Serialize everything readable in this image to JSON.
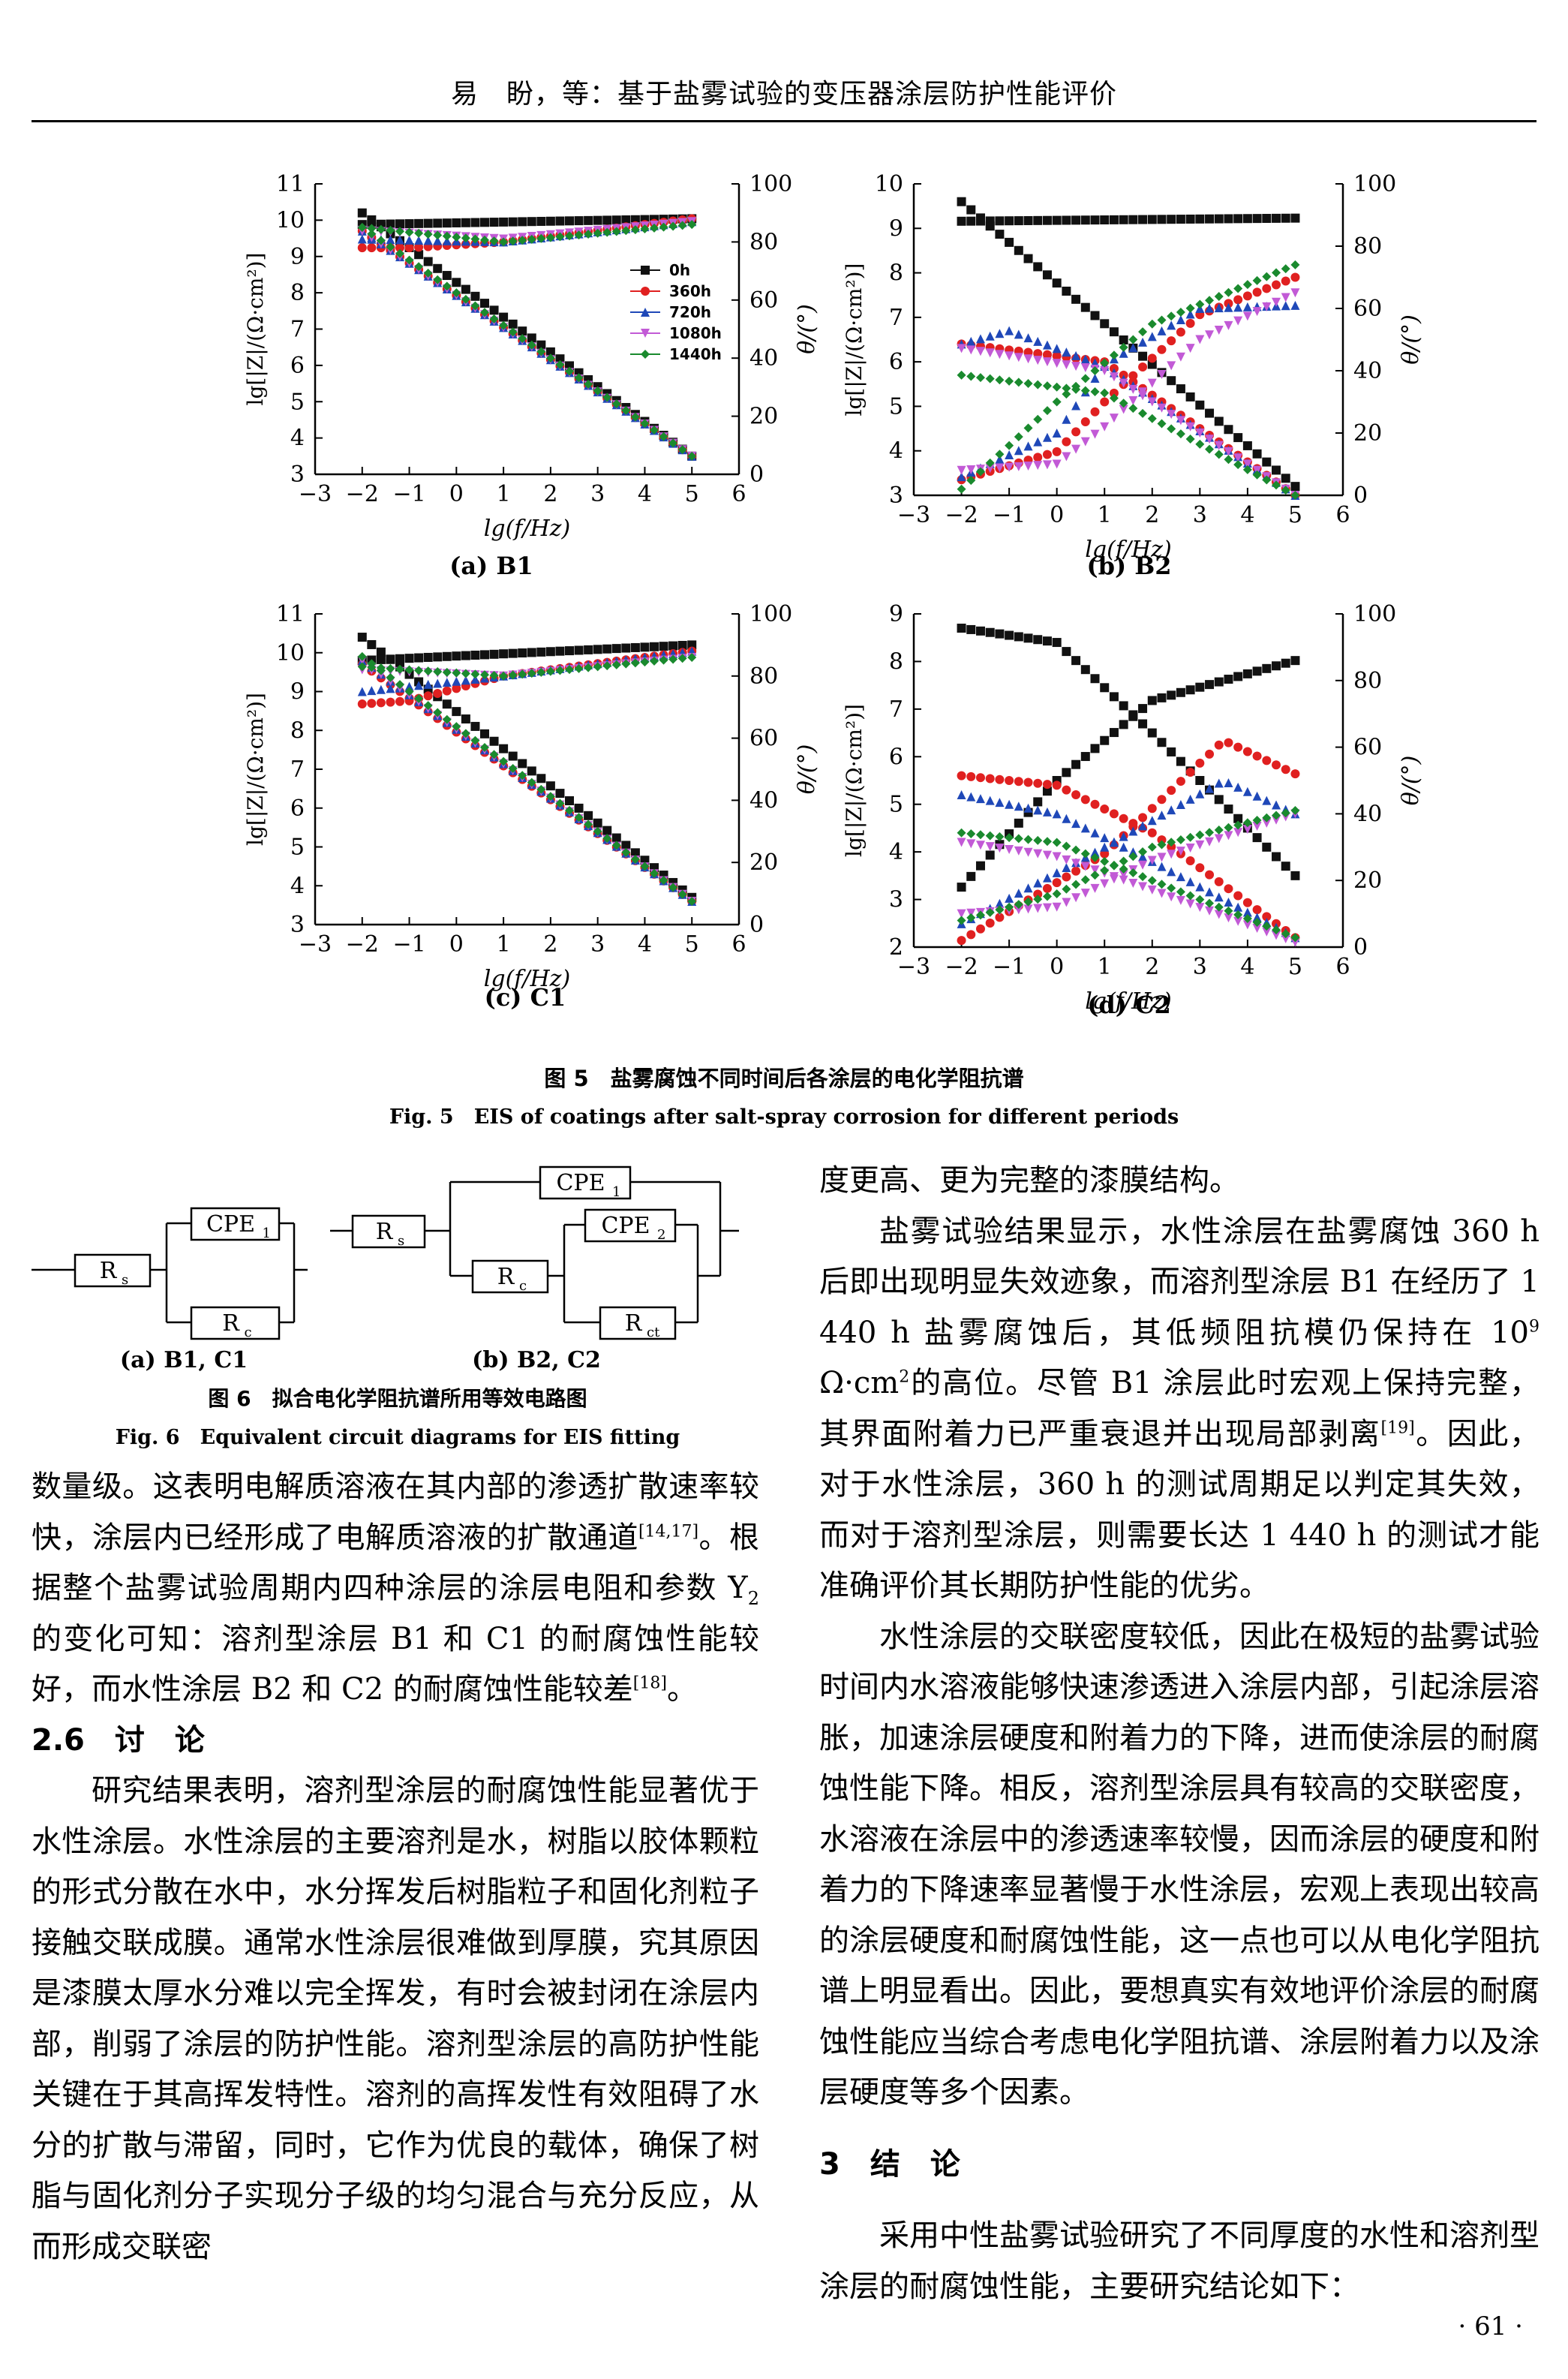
{
  "header": {
    "running_title": "易　盼，等：基于盐雾试验的变压器涂层防护性能评价"
  },
  "figure5": {
    "caption_cn": "图 5　盐雾腐蚀不同时间后各涂层的电化学阻抗谱",
    "caption_en": "Fig. 5　EIS of coatings after salt-spray corrosion for different periods",
    "legend": [
      {
        "label": "0h",
        "color": "#111111",
        "marker": "square"
      },
      {
        "label": "360h",
        "color": "#e02020",
        "marker": "circle"
      },
      {
        "label": "720h",
        "color": "#1f48b8",
        "marker": "triangle-up"
      },
      {
        "label": "1080h",
        "color": "#c25ad6",
        "marker": "triangle-down"
      },
      {
        "label": "1440h",
        "color": "#1a8a2e",
        "marker": "diamond"
      }
    ],
    "x_label": "lg(f/Hz)",
    "y_left_label": "lg[|Z|/(Ω·cm²)]",
    "y_right_label": "θ/(°)",
    "panels": [
      {
        "label": "(a) B1",
        "x_ticks": [
          "−3",
          "−2",
          "−1",
          "0",
          "1",
          "2",
          "3",
          "4",
          "5",
          "6"
        ],
        "y_left_ticks": [
          "3",
          "4",
          "5",
          "6",
          "7",
          "8",
          "9",
          "10",
          "11"
        ],
        "y_right_ticks": [
          "0",
          "20",
          "40",
          "60",
          "80",
          "100"
        ]
      },
      {
        "label": "(b) B2",
        "x_ticks": [
          "−3",
          "−2",
          "−1",
          "0",
          "1",
          "2",
          "3",
          "4",
          "5",
          "6"
        ],
        "y_left_ticks": [
          "3",
          "4",
          "5",
          "6",
          "7",
          "8",
          "9",
          "10"
        ],
        "y_right_ticks": [
          "0",
          "20",
          "40",
          "60",
          "80",
          "100"
        ]
      },
      {
        "label": "(c) C1",
        "x_ticks": [
          "−3",
          "−2",
          "−1",
          "0",
          "1",
          "2",
          "3",
          "4",
          "5",
          "6"
        ],
        "y_left_ticks": [
          "3",
          "4",
          "5",
          "6",
          "7",
          "8",
          "9",
          "10",
          "11"
        ],
        "y_right_ticks": [
          "0",
          "20",
          "40",
          "60",
          "80",
          "100"
        ]
      },
      {
        "label": "(d) C2",
        "x_ticks": [
          "−3",
          "−2",
          "−1",
          "0",
          "1",
          "2",
          "3",
          "4",
          "5",
          "6"
        ],
        "y_left_ticks": [
          "2",
          "3",
          "4",
          "5",
          "6",
          "7",
          "8",
          "9"
        ],
        "y_right_ticks": [
          "0",
          "20",
          "40",
          "60",
          "80",
          "100"
        ]
      }
    ]
  },
  "chart_data": [
    {
      "type": "scatter",
      "title": "(a) B1",
      "xlim": [
        -3,
        6
      ],
      "ylim_left": [
        3,
        11
      ],
      "ylim_right": [
        0,
        100
      ],
      "series": [
        {
          "name": "0h",
          "modulus": [
            [
              -2,
              10.2
            ],
            [
              5,
              3.5
            ]
          ],
          "phase": [
            [
              -2,
              86
            ],
            [
              5,
              88
            ]
          ]
        },
        {
          "name": "360h",
          "modulus": [
            [
              -2,
              9.7
            ],
            [
              5,
              3.5
            ]
          ],
          "phase": [
            [
              -2,
              78
            ],
            [
              -1,
              78
            ],
            [
              1,
              80
            ],
            [
              5,
              88
            ]
          ]
        },
        {
          "name": "720h",
          "modulus": [
            [
              -2,
              9.7
            ],
            [
              5,
              3.5
            ]
          ],
          "phase": [
            [
              -2,
              81
            ],
            [
              1,
              80
            ],
            [
              5,
              87
            ]
          ]
        },
        {
          "name": "1080h",
          "modulus": [
            [
              -2,
              9.7
            ],
            [
              5,
              3.5
            ]
          ],
          "phase": [
            [
              -2,
              84
            ],
            [
              1,
              81
            ],
            [
              5,
              87
            ]
          ]
        },
        {
          "name": "1440h",
          "modulus": [
            [
              -2,
              9.8
            ],
            [
              5,
              3.5
            ]
          ],
          "phase": [
            [
              -2,
              85
            ],
            [
              1,
              80
            ],
            [
              5,
              86
            ]
          ]
        }
      ]
    },
    {
      "type": "scatter",
      "title": "(b) B2",
      "xlim": [
        -3,
        6
      ],
      "ylim_left": [
        3,
        10
      ],
      "ylim_right": [
        0,
        100
      ],
      "series": [
        {
          "name": "0h",
          "modulus": [
            [
              -2,
              9.6
            ],
            [
              5,
              3.2
            ]
          ],
          "phase": [
            [
              -2,
              88
            ],
            [
              5,
              89
            ]
          ]
        },
        {
          "name": "360h",
          "modulus": [
            [
              -2,
              6.4
            ],
            [
              1,
              6.0
            ],
            [
              5,
              3.0
            ]
          ],
          "phase": [
            [
              -2,
              5
            ],
            [
              0,
              14
            ],
            [
              1,
              30
            ],
            [
              3,
              58
            ],
            [
              5,
              70
            ]
          ]
        },
        {
          "name": "720h",
          "modulus": [
            [
              -2,
              6.4
            ],
            [
              -1,
              6.7
            ],
            [
              1,
              5.9
            ],
            [
              5,
              3.0
            ]
          ],
          "phase": [
            [
              -2,
              6
            ],
            [
              0,
              20
            ],
            [
              1,
              42
            ],
            [
              3,
              60
            ],
            [
              5,
              61
            ]
          ]
        },
        {
          "name": "1080h",
          "modulus": [
            [
              -2,
              6.3
            ],
            [
              1,
              5.8
            ],
            [
              5,
              3.0
            ]
          ],
          "phase": [
            [
              -2,
              8
            ],
            [
              0,
              10
            ],
            [
              1,
              22
            ],
            [
              3,
              50
            ],
            [
              5,
              65
            ]
          ]
        },
        {
          "name": "1440h",
          "modulus": [
            [
              -2,
              5.7
            ],
            [
              1,
              5.3
            ],
            [
              5,
              3.0
            ]
          ],
          "phase": [
            [
              -2,
              2
            ],
            [
              0,
              30
            ],
            [
              2,
              55
            ],
            [
              5,
              74
            ]
          ]
        }
      ]
    },
    {
      "type": "scatter",
      "title": "(c) C1",
      "xlim": [
        -3,
        6
      ],
      "ylim_left": [
        3,
        11
      ],
      "ylim_right": [
        0,
        100
      ],
      "series": [
        {
          "name": "0h",
          "modulus": [
            [
              -2,
              10.4
            ],
            [
              5,
              3.7
            ]
          ],
          "phase": [
            [
              -2,
              85
            ],
            [
              5,
              90
            ]
          ]
        },
        {
          "name": "360h",
          "modulus": [
            [
              -2,
              9.7
            ],
            [
              5,
              3.6
            ]
          ],
          "phase": [
            [
              -2,
              71
            ],
            [
              -1,
              72
            ],
            [
              1,
              80
            ],
            [
              5,
              88
            ]
          ]
        },
        {
          "name": "720h",
          "modulus": [
            [
              -2,
              9.8
            ],
            [
              5,
              3.6
            ]
          ],
          "phase": [
            [
              -2,
              75
            ],
            [
              1,
              80
            ],
            [
              5,
              88
            ]
          ]
        },
        {
          "name": "1080h",
          "modulus": [
            [
              -2,
              9.8
            ],
            [
              5,
              3.6
            ]
          ],
          "phase": [
            [
              -2,
              82
            ],
            [
              1,
              80
            ],
            [
              5,
              86
            ]
          ]
        },
        {
          "name": "1440h",
          "modulus": [
            [
              -2,
              9.9
            ],
            [
              5,
              3.6
            ]
          ],
          "phase": [
            [
              -2,
              83
            ],
            [
              1,
              80
            ],
            [
              5,
              86
            ]
          ]
        }
      ]
    },
    {
      "type": "scatter",
      "title": "(d) C2",
      "xlim": [
        -3,
        6
      ],
      "ylim_left": [
        2,
        9
      ],
      "ylim_right": [
        0,
        100
      ],
      "series": [
        {
          "name": "0h",
          "modulus": [
            [
              -2,
              8.7
            ],
            [
              0,
              8.4
            ],
            [
              2,
              6.5
            ],
            [
              5,
              3.5
            ]
          ],
          "phase": [
            [
              -2,
              18
            ],
            [
              0,
              50
            ],
            [
              2,
              74
            ],
            [
              5,
              86
            ]
          ]
        },
        {
          "name": "360h",
          "modulus": [
            [
              -2,
              5.6
            ],
            [
              0,
              5.4
            ],
            [
              2,
              4.4
            ],
            [
              5,
              2.2
            ]
          ],
          "phase": [
            [
              -2,
              2
            ],
            [
              1,
              28
            ],
            [
              3.5,
              62
            ],
            [
              5,
              52
            ]
          ]
        },
        {
          "name": "720h",
          "modulus": [
            [
              -2,
              5.2
            ],
            [
              0,
              4.8
            ],
            [
              2,
              3.8
            ],
            [
              5,
              2.2
            ]
          ],
          "phase": [
            [
              -2,
              7
            ],
            [
              1,
              30
            ],
            [
              3.5,
              50
            ],
            [
              5,
              40
            ]
          ]
        },
        {
          "name": "1080h",
          "modulus": [
            [
              -2,
              4.2
            ],
            [
              0,
              3.9
            ],
            [
              2,
              3.2
            ],
            [
              5,
              2.1
            ]
          ],
          "phase": [
            [
              -2,
              10
            ],
            [
              0,
              12
            ],
            [
              2,
              26
            ],
            [
              5,
              40
            ]
          ]
        },
        {
          "name": "1440h",
          "modulus": [
            [
              -2,
              4.4
            ],
            [
              0,
              4.2
            ],
            [
              2,
              3.4
            ],
            [
              5,
              2.2
            ]
          ],
          "phase": [
            [
              -2,
              8
            ],
            [
              0,
              16
            ],
            [
              2,
              30
            ],
            [
              5,
              41
            ]
          ]
        }
      ]
    }
  ],
  "figure6": {
    "caption_cn": "图 6　拟合电化学阻抗谱所用等效电路图",
    "caption_en": "Fig. 6　Equivalent circuit diagrams for EIS fitting",
    "sub_a": "(a) B1, C1",
    "sub_b": "(b) B2, C2",
    "labels": {
      "Rs": "R",
      "Rs_sub": "s",
      "Rc": "R",
      "Rc_sub": "c",
      "Rct": "R",
      "Rct_sub": "ct",
      "CPE": "CPE",
      "CPE1_sub": "1",
      "CPE2_sub": "2"
    }
  },
  "left_column": {
    "p1": "数量级。这表明电解质溶液在其内部的渗透扩散速率较快，涂层内已经形成了电解质溶液的扩散通道",
    "p1_ref": "[14,17]",
    "p1b": "。根据整个盐雾试验周期内四种涂层的涂层电阻和参数 Y",
    "p1b_sub": "2",
    "p1c": " 的变化可知：溶剂型涂层 B1 和 C1 的耐腐蚀性能较好，而水性涂层 B2 和 C2 的耐腐蚀性能较差",
    "p1_ref2": "[18]",
    "p1d": "。",
    "sec26": "2.6　讨　论",
    "p2": "研究结果表明，溶剂型涂层的耐腐蚀性能显著优于水性涂层。水性涂层的主要溶剂是水，树脂以胶体颗粒的形式分散在水中，水分挥发后树脂粒子和固化剂粒子接触交联成膜。通常水性涂层很难做到厚膜，究其原因是漆膜太厚水分难以完全挥发，有时会被封闭在涂层内部，削弱了涂层的防护性能。溶剂型涂层的高防护性能关键在于其高挥发特性。溶剂的高挥发性有效阻碍了水分的扩散与滞留，同时，它作为优良的载体，确保了树脂与固化剂分子实现分子级的均匀混合与充分反应，从而形成交联密"
  },
  "right_column": {
    "p0": "度更高、更为完整的漆膜结构。",
    "p1a": "盐雾试验结果显示，水性涂层在盐雾腐蚀 360 h 后即出现明显失效迹象，而溶剂型涂层 B1 在经历了 1 440 h 盐雾腐蚀后，其低频阻抗模仍保持在 10",
    "p1_sup": "9",
    "p1b": " Ω·cm",
    "p1_sup2": "2",
    "p1c": "的高位。尽管 B1 涂层此时宏观上保持完整，其界面附着力已严重衰退并出现局部剥离",
    "p1_ref": "[19]",
    "p1d": "。因此，对于水性涂层，360 h 的测试周期足以判定其失效，而对于溶剂型涂层，则需要长达 1 440 h 的测试才能准确评价其长期防护性能的优劣。",
    "p2": "水性涂层的交联密度较低，因此在极短的盐雾试验时间内水溶液能够快速渗透进入涂层内部，引起涂层溶胀，加速涂层硬度和附着力的下降，进而使涂层的耐腐蚀性能下降。相反，溶剂型涂层具有较高的交联密度，水溶液在涂层中的渗透速率较慢，因而涂层的硬度和附着力的下降速率显著慢于水性涂层，宏观上表现出较高的涂层硬度和耐腐蚀性能，这一点也可以从电化学阻抗谱上明显看出。因此，要想真实有效地评价涂层的耐腐蚀性能应当综合考虑电化学阻抗谱、涂层附着力以及涂层硬度等多个因素。",
    "sec3": "3　结　论",
    "p3": "采用中性盐雾试验研究了不同厚度的水性和溶剂型涂层的耐腐蚀性能，主要研究结论如下："
  },
  "page_number": "· 61 ·"
}
